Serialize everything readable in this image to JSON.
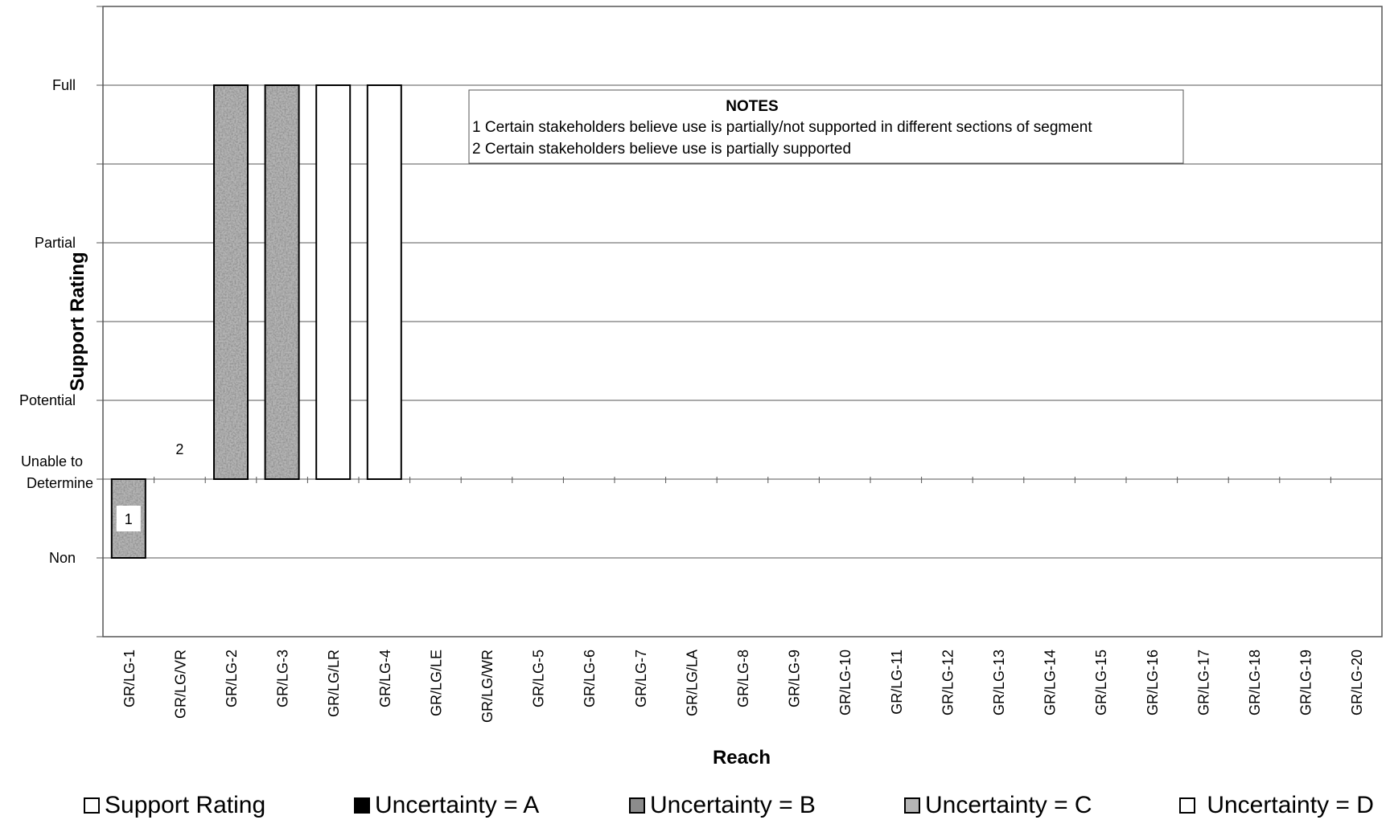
{
  "chart_data": {
    "type": "bar",
    "title": "",
    "xlabel": "Reach",
    "ylabel": "Support Rating",
    "y_levels": [
      {
        "value": 0,
        "label": "Non"
      },
      {
        "value": 1,
        "label": "Unable to Determine"
      },
      {
        "value": 2,
        "label": "Potential"
      },
      {
        "value": 3,
        "label": ""
      },
      {
        "value": 4,
        "label": "Partial"
      },
      {
        "value": 5,
        "label": ""
      },
      {
        "value": 6,
        "label": "Full"
      }
    ],
    "ylim": [
      -1,
      7
    ],
    "baseline": 1,
    "grid": true,
    "categories": [
      "GR/LG-1",
      "GR/LG/VR",
      "GR/LG-2",
      "GR/LG-3",
      "GR/LG/LR",
      "GR/LG-4",
      "GR/LG/LE",
      "GR/LG/WR",
      "GR/LG-5",
      "GR/LG-6",
      "GR/LG-7",
      "GR/LG/LA",
      "GR/LG-8",
      "GR/LG-9",
      "GR/LG-10",
      "GR/LG-11",
      "GR/LG-12",
      "GR/LG-13",
      "GR/LG-14",
      "GR/LG-15",
      "GR/LG-16",
      "GR/LG-17",
      "GR/LG-18",
      "GR/LG-19",
      "GR/LG-20"
    ],
    "values": [
      0,
      null,
      6,
      6,
      6,
      6,
      null,
      null,
      null,
      null,
      null,
      null,
      null,
      null,
      null,
      null,
      null,
      null,
      null,
      null,
      null,
      null,
      null,
      null,
      null
    ],
    "uncertainty": [
      "C",
      null,
      "C",
      "C",
      "D",
      "D",
      null,
      null,
      null,
      null,
      null,
      null,
      null,
      null,
      null,
      null,
      null,
      null,
      null,
      null,
      null,
      null,
      null,
      null,
      null
    ],
    "bar_annotations": [
      {
        "category": "GR/LG-1",
        "text": "1"
      },
      {
        "category": "GR/LG/VR",
        "text": "2"
      }
    ],
    "notes": {
      "title": "NOTES",
      "lines": [
        "1  Certain stakeholders believe use is partially/not supported in different sections of segment",
        "2  Certain stakeholders believe use is partially supported"
      ]
    },
    "legend": {
      "placement": "bottom",
      "items": [
        {
          "label": "Support Rating",
          "style": "outline"
        },
        {
          "label": "Uncertainty = A",
          "style": "black"
        },
        {
          "label": "Uncertainty = B",
          "style": "gray"
        },
        {
          "label": "Uncertainty = C",
          "style": "mottled"
        },
        {
          "label": " Uncertainty = D",
          "style": "white"
        }
      ]
    },
    "colors": {
      "uncertainty_B": "#8c8c8c",
      "mottled_base": "#b5b5b5"
    }
  }
}
